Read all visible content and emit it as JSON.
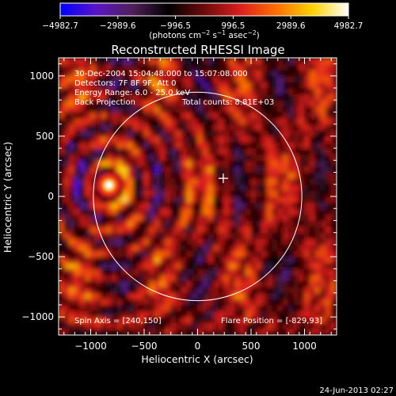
{
  "chart_data": {
    "type": "heatmap",
    "title": "Reconstructed RHESSI Image",
    "xlabel": "Heliocentric X (arcsec)",
    "ylabel": "Heliocentric Y (arcsec)",
    "xlim": [
      -1300,
      1300
    ],
    "ylim": [
      -1150,
      1150
    ],
    "x_ticks": [
      -1000,
      -500,
      0,
      500,
      1000
    ],
    "y_ticks": [
      -1000,
      -500,
      0,
      500,
      1000
    ],
    "x_tick_labels": [
      "−1000",
      "−500",
      "0",
      "500",
      "1000"
    ],
    "y_tick_labels": [
      "−1000",
      "−500",
      "0",
      "500",
      "1000"
    ],
    "colorbar": {
      "min": -4982.7,
      "max": 4982.7,
      "ticks": [
        -4982.7,
        -2989.6,
        -996.5,
        996.5,
        2989.6,
        4982.7
      ],
      "tick_labels": [
        "−4982.7",
        "−2989.6",
        "−996.5",
        "996.5",
        "2989.6",
        "4982.7"
      ],
      "units_parts": [
        "(photons cm",
        "−2",
        " s",
        "−1",
        " asec",
        "−2",
        ")"
      ],
      "stops": [
        "#0000ff",
        "#5a14c8",
        "#50205a",
        "#000000",
        "#6e0a0a",
        "#dc1e1e",
        "#ff6e00",
        "#ffd200",
        "#ffffff"
      ]
    },
    "annotations": {
      "time_range": "30-Dec-2004 15:04:48.000 to 15:07:08.000",
      "detectors": "Detectors: 7F 8F 9F, Att 0",
      "energy_range": "Energy Range: 6.0 - 25.0 keV",
      "method": "Back Projection",
      "total_counts": "Total counts: 8.81E+03",
      "spin_axis": "Spin Axis = [240,150]",
      "flare_position": "Flare Position = [-829,93]"
    },
    "spin_axis": [
      240,
      150
    ],
    "flare_position": [
      -829,
      93
    ],
    "solar_disk_radius_arcsec": 975,
    "source_peak_value": 4982.7
  },
  "footer": {
    "date": "24-Jun-2013 02:27"
  }
}
